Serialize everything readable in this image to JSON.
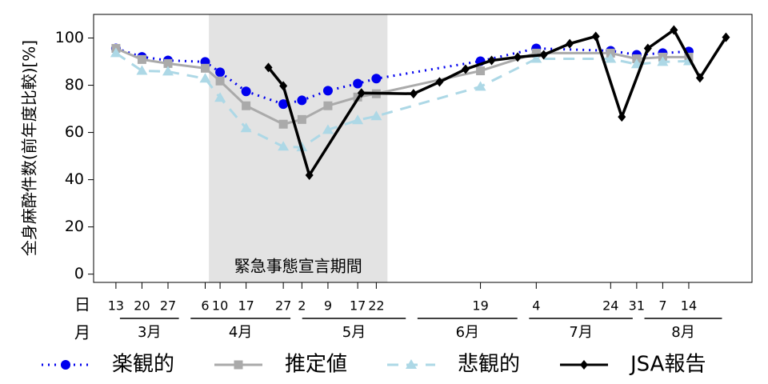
{
  "chart_data": {
    "type": "line",
    "ylabel": "全身麻酔件数(前年度比較)[%]",
    "ylim": [
      -3.5,
      110
    ],
    "yticks": [
      0,
      20,
      40,
      60,
      80,
      100
    ],
    "xlim": [
      "03-07",
      "08-31"
    ],
    "xticks": [
      {
        "value": "03-13",
        "label": "13"
      },
      {
        "value": "03-20",
        "label": "20"
      },
      {
        "value": "03-27",
        "label": "27"
      },
      {
        "value": "04-06",
        "label": "6"
      },
      {
        "value": "04-10",
        "label": "10"
      },
      {
        "value": "04-17",
        "label": "17"
      },
      {
        "value": "04-27",
        "label": "27"
      },
      {
        "value": "05-02",
        "label": "2"
      },
      {
        "value": "05-09",
        "label": "9"
      },
      {
        "value": "05-17",
        "label": "17"
      },
      {
        "value": "05-22",
        "label": "22"
      },
      {
        "value": "06-19",
        "label": "19"
      },
      {
        "value": "07-04",
        "label": "4"
      },
      {
        "value": "07-24",
        "label": "24"
      },
      {
        "value": "07-31",
        "label": "31"
      },
      {
        "value": "08-07",
        "label": "7"
      },
      {
        "value": "08-14",
        "label": "14"
      }
    ],
    "day_row_label": "日",
    "month_row_label": "月",
    "months": [
      {
        "value": "03",
        "label": "3月"
      },
      {
        "value": "04",
        "label": "4月"
      },
      {
        "value": "05",
        "label": "5月"
      },
      {
        "value": "06",
        "label": "6月"
      },
      {
        "value": "07",
        "label": "7月"
      },
      {
        "value": "08",
        "label": "8月"
      }
    ],
    "shade": {
      "from": "04-07",
      "to": "05-25",
      "label": "緊急事態宣言期間",
      "color": "#e3e3e3"
    },
    "legend": "bottom",
    "series": [
      {
        "name": "楽観的",
        "color": "#0000ee",
        "dash": "2,6",
        "marker": "circle",
        "x": [
          "03-13",
          "03-20",
          "03-27",
          "04-06",
          "04-10",
          "04-17",
          "04-27",
          "05-02",
          "05-09",
          "05-17",
          "05-22",
          "06-19",
          "07-04",
          "07-24",
          "07-31",
          "08-07",
          "08-14"
        ],
        "values": [
          95.6,
          92,
          90.5,
          89.9,
          85.5,
          77.4,
          72,
          73.6,
          77.7,
          80.7,
          82.8,
          90.2,
          95.6,
          94.6,
          92.9,
          93.6,
          94.3
        ]
      },
      {
        "name": "推定値",
        "color": "#aaaaaa",
        "dash": "",
        "marker": "square",
        "x": [
          "03-13",
          "03-20",
          "03-27",
          "04-06",
          "04-10",
          "04-17",
          "04-27",
          "05-02",
          "05-09",
          "05-17",
          "05-22",
          "06-19",
          "07-04",
          "07-24",
          "07-31",
          "08-07",
          "08-14"
        ],
        "values": [
          95.6,
          90.9,
          89.2,
          87.2,
          81.8,
          71.3,
          63.5,
          65.5,
          71.3,
          75,
          76.4,
          86.1,
          93.6,
          93.6,
          91.2,
          91.9,
          91.9
        ]
      },
      {
        "name": "悲観的",
        "color": "#add8e6",
        "dash": "14,10",
        "marker": "triangle",
        "x": [
          "03-13",
          "03-20",
          "03-27",
          "04-06",
          "04-10",
          "04-17",
          "04-27",
          "05-02",
          "05-09",
          "05-17",
          "05-22",
          "06-19",
          "07-04",
          "07-24",
          "07-31",
          "08-07",
          "08-14"
        ],
        "values": [
          93.6,
          86.1,
          85.8,
          82.8,
          74.7,
          61.8,
          54,
          53.7,
          61.1,
          65.2,
          66.9,
          79.4,
          91.2,
          91.2,
          88.9,
          89.9,
          90.2
        ]
      },
      {
        "name": "JSA報告",
        "color": "#000000",
        "dash": "",
        "marker": "diamond",
        "x": [
          "04-23",
          "04-27",
          "05-04",
          "05-18",
          "06-01",
          "06-08",
          "06-15",
          "06-22",
          "06-29",
          "07-06",
          "07-13",
          "07-20",
          "07-27",
          "08-03",
          "08-10",
          "08-17",
          "08-24"
        ],
        "values": [
          87.5,
          79.7,
          41.9,
          76.7,
          76.4,
          81.4,
          86.8,
          90.5,
          91.9,
          92.9,
          97.6,
          100.7,
          66.6,
          95.6,
          103.4,
          83.1,
          100.3
        ]
      }
    ]
  }
}
